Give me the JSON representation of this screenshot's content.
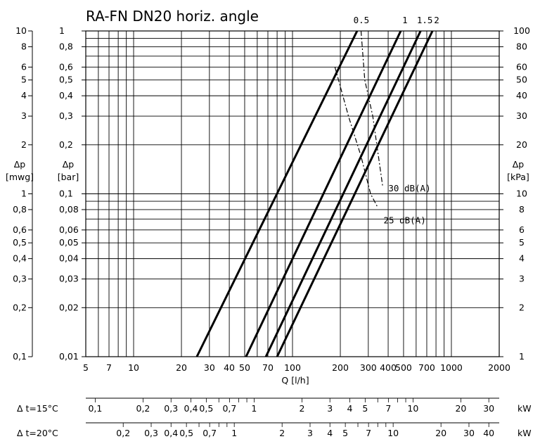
{
  "chart_data": {
    "type": "line",
    "title": "RA-FN  DN20 horiz. angle",
    "xlabel": "Q [l/h]",
    "x_scale": "log",
    "y_scale": "log",
    "xlim": [
      5,
      2000
    ],
    "x_ticks": [
      "5",
      "7",
      "10",
      "20",
      "30",
      "40",
      "50",
      "70",
      "100",
      "200",
      "300",
      "400",
      "500",
      "700",
      "1000",
      "2000"
    ],
    "y_axes": {
      "mwg": {
        "label_symbol": "Δp",
        "label_unit": "[mwg]",
        "ylim": [
          0.1,
          10
        ],
        "ticks": [
          "10",
          "8",
          "6",
          "5",
          "4",
          "3",
          "2",
          "1",
          "0,8",
          "0,6",
          "0,5",
          "0,4",
          "0,3",
          "0,2",
          "0,1"
        ]
      },
      "bar": {
        "label_symbol": "Δp",
        "label_unit": "[bar]",
        "ylim": [
          0.01,
          1
        ],
        "ticks": [
          "1",
          "0,8",
          "0,6",
          "0,5",
          "0,4",
          "0,3",
          "0,2",
          "0,1",
          "0,08",
          "0,06",
          "0,05",
          "0,04",
          "0,03",
          "0,02",
          "0,01"
        ]
      },
      "kpa": {
        "label_symbol": "Δp",
        "label_unit": "[kPa]",
        "ylim": [
          1,
          100
        ],
        "ticks": [
          "100",
          "80",
          "60",
          "50",
          "40",
          "30",
          "20",
          "10",
          "8",
          "6",
          "5",
          "4",
          "3",
          "2",
          "1"
        ]
      }
    },
    "series": [
      {
        "name": "0.5",
        "x": [
          25,
          255
        ],
        "y_bar": [
          0.01,
          1
        ]
      },
      {
        "name": "1",
        "x": [
          51,
          480
        ],
        "y_bar": [
          0.01,
          1
        ]
      },
      {
        "name": "1.5",
        "x": [
          68,
          640
        ],
        "y_bar": [
          0.01,
          1
        ]
      },
      {
        "name": "2",
        "x": [
          80,
          760
        ],
        "y_bar": [
          0.01,
          1
        ]
      }
    ],
    "noise_lines": [
      {
        "name": "30  dB(A)",
        "x": [
          270,
          285,
          320,
          370
        ],
        "y_bar": [
          1,
          0.5,
          0.3,
          0.11
        ]
      },
      {
        "name": "25  dB(A)",
        "x": [
          185,
          225,
          270,
          310,
          345
        ],
        "y_bar": [
          0.6,
          0.3,
          0.17,
          0.1,
          0.082
        ]
      }
    ],
    "power_scales": [
      {
        "label": "Δ t=15°C",
        "unit": "kW",
        "ticks": [
          {
            "v": 0.1,
            "t": "0,1"
          },
          {
            "v": 0.2,
            "t": "0,2"
          },
          {
            "v": 0.3,
            "t": "0,3"
          },
          {
            "v": 0.4,
            "t": "0,4"
          },
          {
            "v": 0.5,
            "t": "0,5"
          },
          {
            "v": 0.7,
            "t": "0,7"
          },
          {
            "v": 1,
            "t": "1"
          },
          {
            "v": 2,
            "t": "2"
          },
          {
            "v": 3,
            "t": "3"
          },
          {
            "v": 4,
            "t": "4"
          },
          {
            "v": 5,
            "t": "5"
          },
          {
            "v": 7,
            "t": "7"
          },
          {
            "v": 10,
            "t": "10"
          },
          {
            "v": 20,
            "t": "20"
          },
          {
            "v": 30,
            "t": "30"
          }
        ]
      },
      {
        "label": "Δ t=20°C",
        "unit": "kW",
        "ticks": [
          {
            "v": 0.2,
            "t": "0,2"
          },
          {
            "v": 0.3,
            "t": "0,3"
          },
          {
            "v": 0.4,
            "t": "0,4"
          },
          {
            "v": 0.5,
            "t": "0,5"
          },
          {
            "v": 0.7,
            "t": "0,7"
          },
          {
            "v": 1,
            "t": "1"
          },
          {
            "v": 2,
            "t": "2"
          },
          {
            "v": 3,
            "t": "3"
          },
          {
            "v": 4,
            "t": "4"
          },
          {
            "v": 5,
            "t": "5"
          },
          {
            "v": 7,
            "t": "7"
          },
          {
            "v": 10,
            "t": "10"
          },
          {
            "v": 20,
            "t": "20"
          },
          {
            "v": 30,
            "t": "30"
          },
          {
            "v": 40,
            "t": "40"
          }
        ]
      }
    ],
    "grid": true
  }
}
